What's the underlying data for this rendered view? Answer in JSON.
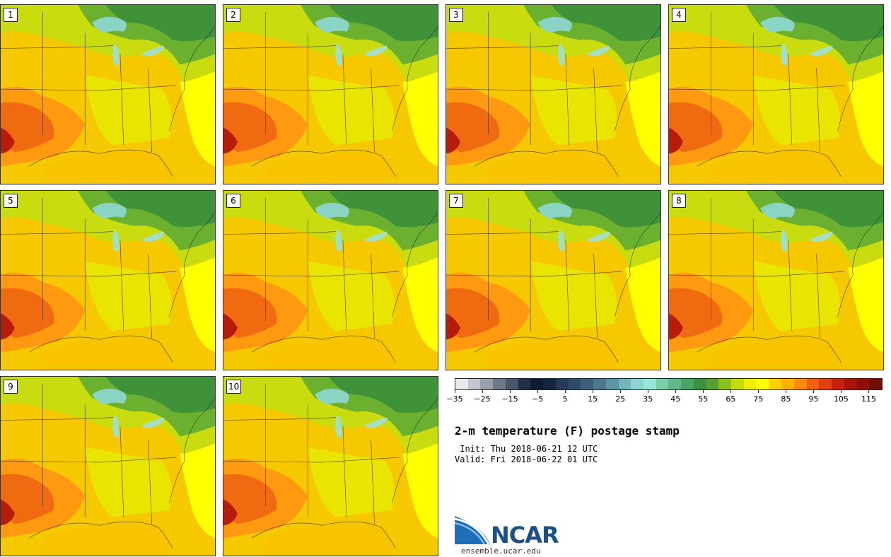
{
  "panels": [
    {
      "label": "1"
    },
    {
      "label": "2"
    },
    {
      "label": "3"
    },
    {
      "label": "4"
    },
    {
      "label": "5"
    },
    {
      "label": "6"
    },
    {
      "label": "7"
    },
    {
      "label": "8"
    },
    {
      "label": "9"
    },
    {
      "label": "10"
    }
  ],
  "colorbar": {
    "colors": [
      "#e6e8ea",
      "#c2c6cc",
      "#9aa0aa",
      "#6f7788",
      "#4a546a",
      "#243048",
      "#0e1a30",
      "#152540",
      "#243a58",
      "#2e4c6a",
      "#3c5f7c",
      "#4d7890",
      "#5e94a4",
      "#74b4ba",
      "#8ed4d0",
      "#98e4d6",
      "#7ccca8",
      "#60b888",
      "#4aa468",
      "#3a9040",
      "#54a030",
      "#8ec020",
      "#c4dc10",
      "#eeee00",
      "#ffff00",
      "#ffd000",
      "#ffb000",
      "#ff8c10",
      "#f06010",
      "#e04010",
      "#c82010",
      "#a81408",
      "#8c1008",
      "#6c1008"
    ],
    "tick_labels": [
      "−35",
      "−25",
      "−15",
      "−5",
      "5",
      "15",
      "25",
      "35",
      "45",
      "55",
      "65",
      "75",
      "85",
      "95",
      "105",
      "115"
    ]
  },
  "title": "2-m temperature (F) postage stamp",
  "init": " Init: Thu 2018-06-21 12 UTC",
  "valid": "Valid: Fri 2018-06-22 01 UTC",
  "logo": {
    "name": "NCAR",
    "url": "ensemble.ucar.edu"
  }
}
